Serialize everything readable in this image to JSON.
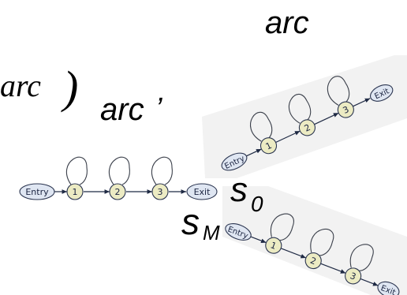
{
  "labels": {
    "arc_top": "arc",
    "arc_fragment": "arc",
    "close_paren": ")",
    "arc_prime": "arc",
    "prime": "’",
    "s0_base": "s",
    "s0_sub": "0",
    "sM_base": "s",
    "sM_sub": "M"
  },
  "chains": {
    "middle": {
      "entry": "Entry",
      "states": [
        "1",
        "2",
        "3"
      ],
      "exit": "Exit"
    },
    "top": {
      "entry": "Entry",
      "states": [
        "1",
        "2",
        "3"
      ],
      "exit": "Exit"
    },
    "bottom": {
      "entry": "Entry",
      "states": [
        "1",
        "2",
        "3"
      ],
      "exit": "Exit"
    }
  },
  "colors": {
    "state_fill": "#ecebc3",
    "endpoint_fill": "#dfe6f2",
    "stroke": "#1f2a44",
    "panel_background": "#f2f2f2"
  }
}
